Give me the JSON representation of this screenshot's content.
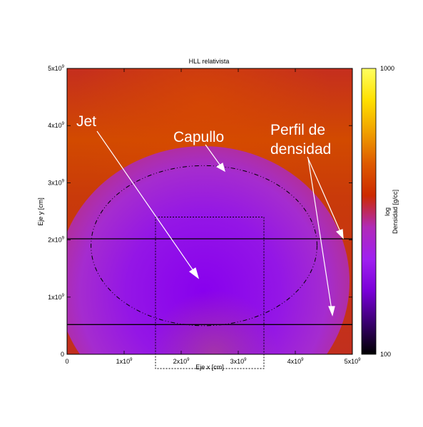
{
  "chart_data": {
    "type": "heatmap",
    "title": "HLL relativista",
    "xlabel": "Eje x [cm]",
    "ylabel": "Eje y [cm]",
    "xlim": [
      0,
      5000000000.0
    ],
    "ylim": [
      0,
      5000000000.0
    ],
    "x_ticks": [
      {
        "value": 0,
        "mant": "0",
        "exp": ""
      },
      {
        "value": 1000000000.0,
        "mant": "1x10",
        "exp": "9"
      },
      {
        "value": 2000000000.0,
        "mant": "2x10",
        "exp": "9"
      },
      {
        "value": 3000000000.0,
        "mant": "3x10",
        "exp": "9"
      },
      {
        "value": 4000000000.0,
        "mant": "4x10",
        "exp": "9"
      },
      {
        "value": 5000000000.0,
        "mant": "5x10",
        "exp": "9"
      }
    ],
    "y_ticks": [
      {
        "value": 0,
        "mant": "0",
        "exp": ""
      },
      {
        "value": 1000000000.0,
        "mant": "1x10",
        "exp": "9"
      },
      {
        "value": 2000000000.0,
        "mant": "2x10",
        "exp": "9"
      },
      {
        "value": 3000000000.0,
        "mant": "3x10",
        "exp": "9"
      },
      {
        "value": 4000000000.0,
        "mant": "4x10",
        "exp": "9"
      },
      {
        "value": 5000000000.0,
        "mant": "5x10",
        "exp": "9"
      }
    ],
    "colorbar": {
      "scale": "log",
      "min": 100,
      "max": 1000,
      "min_label": "100",
      "max_label": "1000",
      "label_line1": "log",
      "label_line2": "Densidad [g/cc]",
      "colors": [
        "#000000",
        "#3a0070",
        "#7a00d8",
        "#a020f0",
        "#b12ab8",
        "#cc2a00",
        "#de5a00",
        "#f0a000",
        "#ffe000",
        "#ffff60"
      ]
    },
    "cocoon_ellipse": {
      "cx": 2400000000.0,
      "cy": 1900000000.0,
      "rx": 1980000000.0,
      "ry": 1400000000.0
    },
    "profile_lines_y": [
      2020000000.0,
      520000000.0
    ],
    "zoom_box": {
      "x0": 1550000000.0,
      "x1": 3450000000.0,
      "y0": -250000000.0,
      "y1": 2400000000.0
    },
    "annotations": {
      "jet": "Jet",
      "capullo": "Capullo",
      "perfil_line1": "Perfil de",
      "perfil_line2": "densidad"
    }
  }
}
